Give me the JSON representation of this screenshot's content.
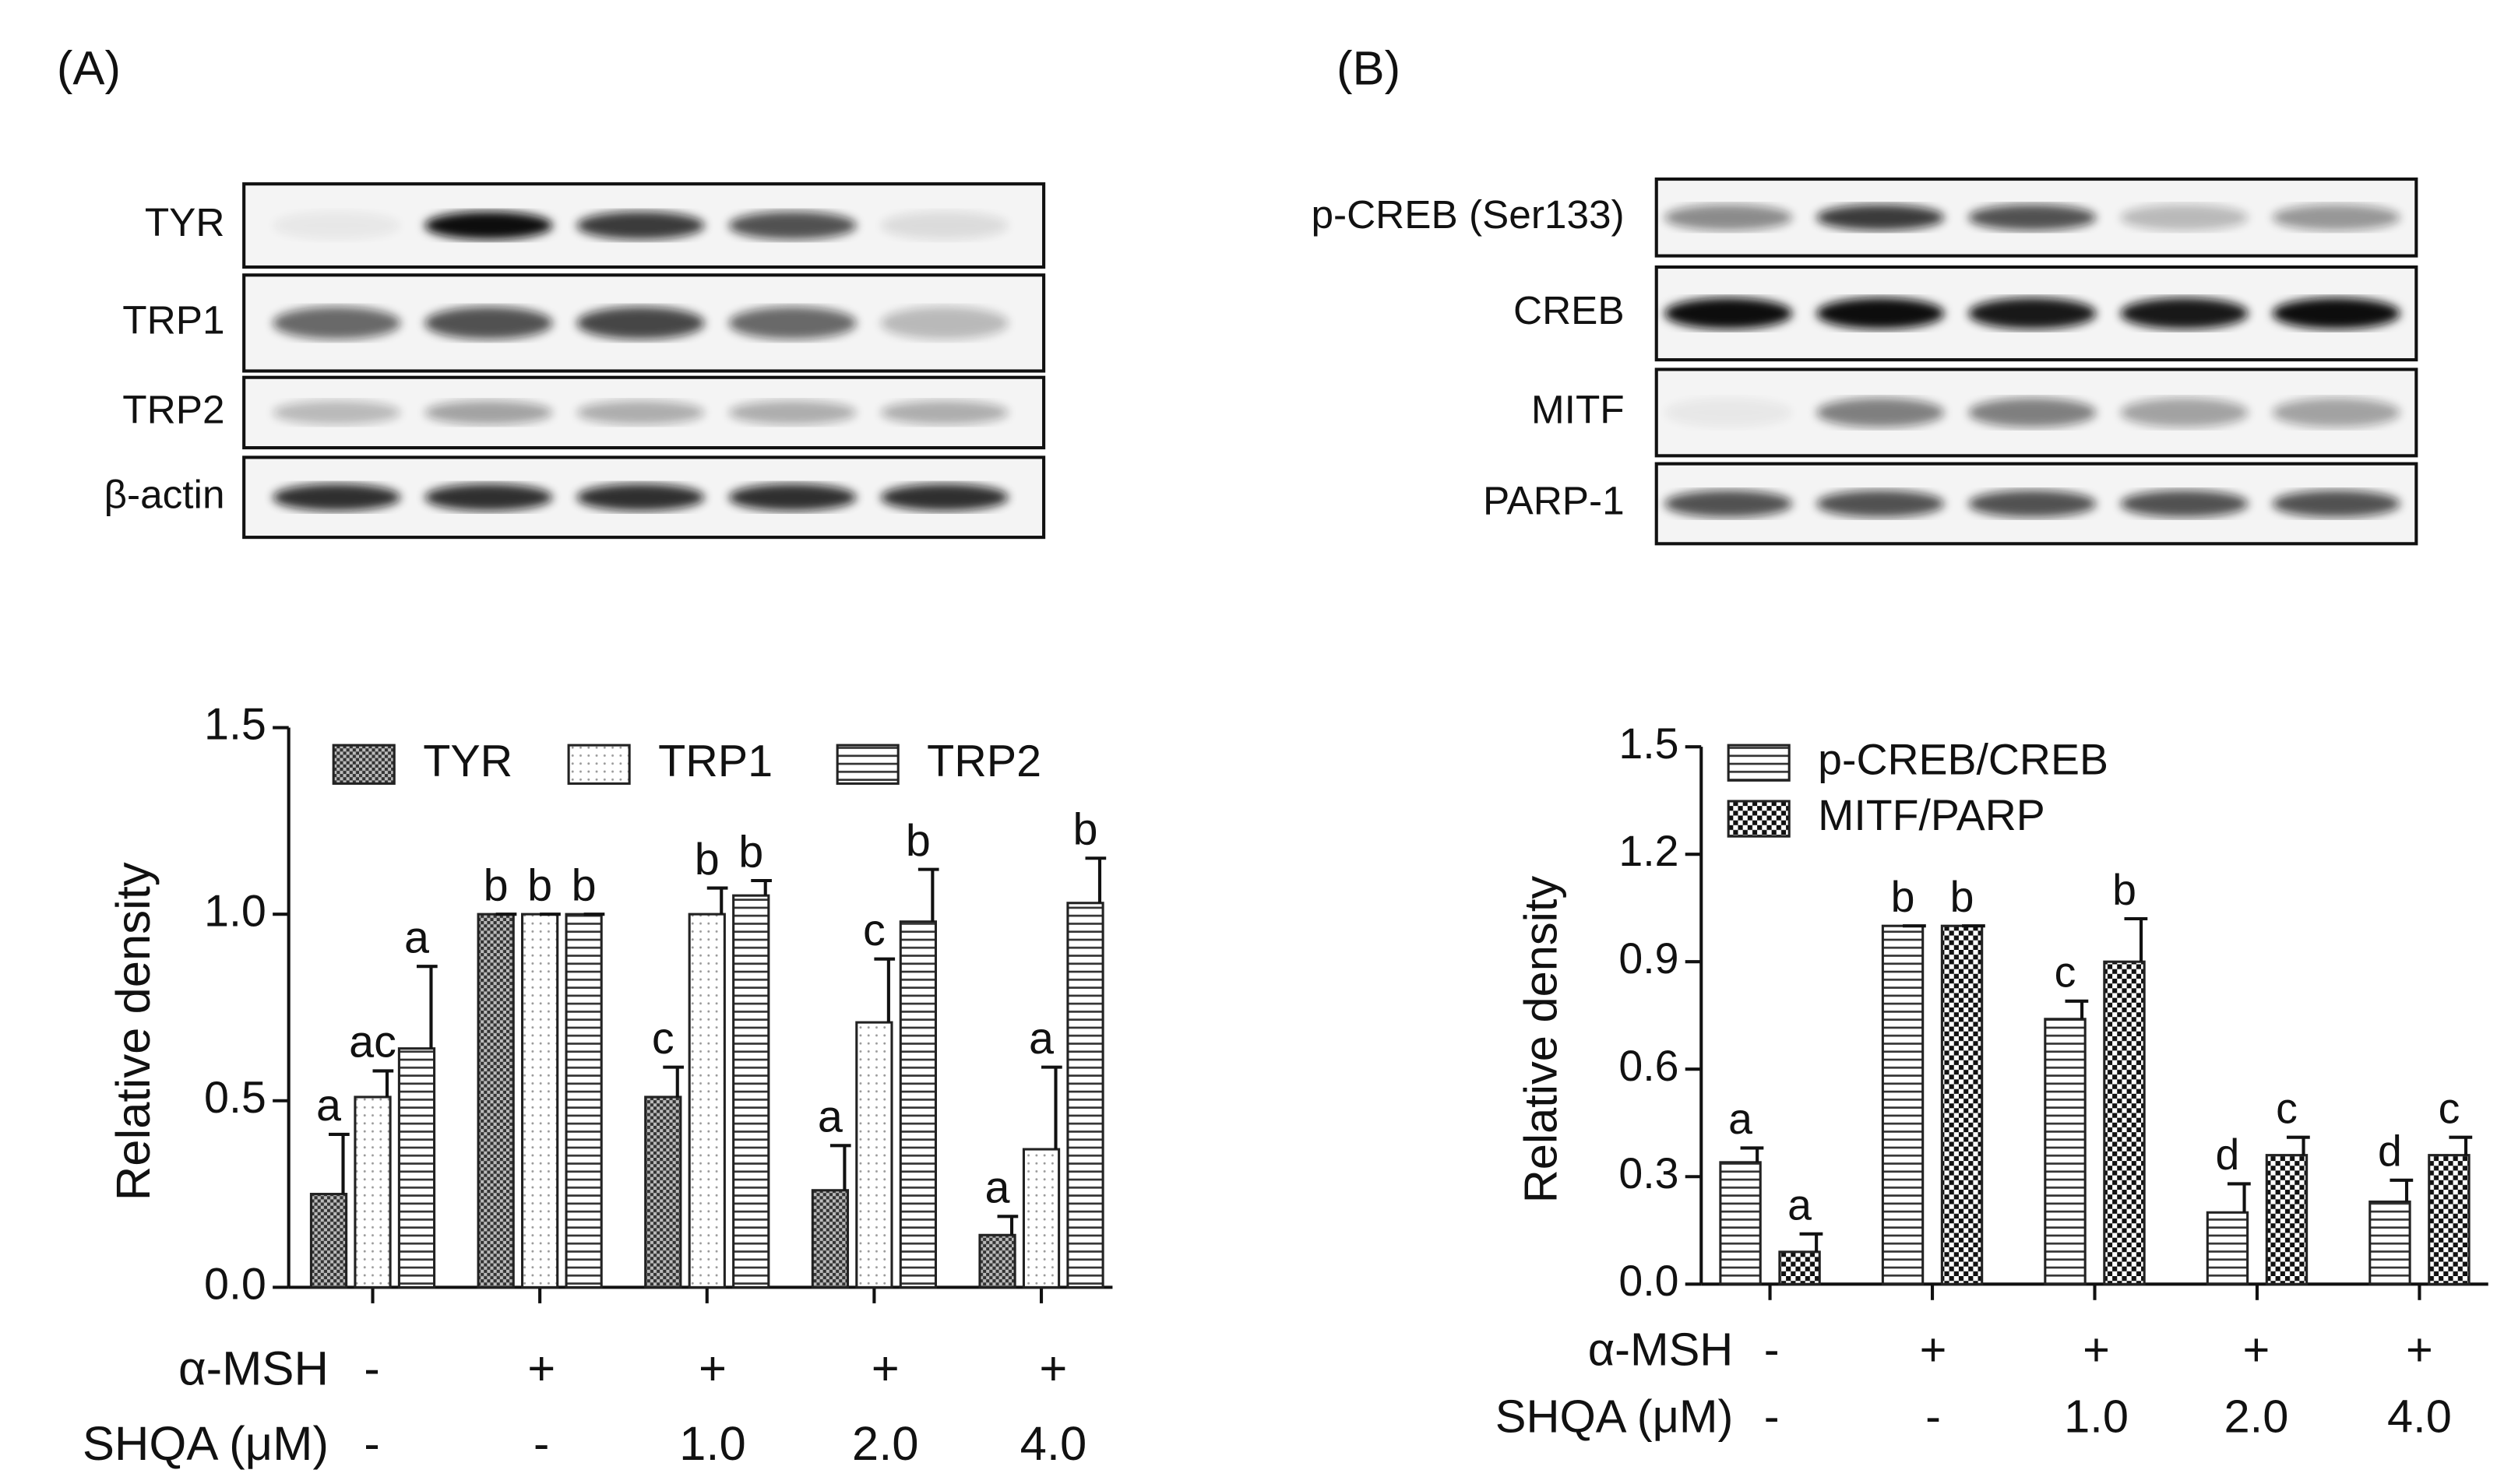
{
  "chart_data": [
    {
      "type": "bar",
      "panel_label": "(A)",
      "blot_labels": [
        "TYR",
        "TRP1",
        "TRP2",
        "β-actin"
      ],
      "ylabel": "Relative density",
      "ylim": [
        0,
        1.5
      ],
      "yticks": [
        {
          "value": 0,
          "label": "0.0"
        },
        {
          "value": 0.5,
          "label": "0.5"
        },
        {
          "value": 1,
          "label": "1.0"
        },
        {
          "value": 1.5,
          "label": "1.5"
        }
      ],
      "series": [
        {
          "name": "TYR",
          "pattern": "crosshatch",
          "color": "#555555",
          "values": [
            0.25,
            1.0,
            0.51,
            0.26,
            0.14
          ],
          "errors": [
            0.16,
            0,
            0.08,
            0.12,
            0.05
          ],
          "letters": [
            "a",
            "b",
            "c",
            "a",
            "a"
          ]
        },
        {
          "name": "TRP1",
          "pattern": "dots",
          "color": "#999999",
          "values": [
            0.51,
            1.0,
            1.0,
            0.71,
            0.37
          ],
          "errors": [
            0.07,
            0,
            0.07,
            0.17,
            0.22
          ],
          "letters": [
            "ac",
            "b",
            "b",
            "c",
            "a"
          ]
        },
        {
          "name": "TRP2",
          "pattern": "hlines",
          "color": "#333333",
          "values": [
            0.64,
            1.0,
            1.05,
            0.98,
            1.03
          ],
          "errors": [
            0.22,
            0,
            0.04,
            0.14,
            0.12
          ],
          "letters": [
            "a",
            "b",
            "b",
            "b",
            "b"
          ]
        }
      ],
      "treatments": [
        {
          "label": "α-MSH",
          "values": [
            "-",
            "+",
            "+",
            "+",
            "+"
          ]
        },
        {
          "label": "SHQA (μM)",
          "values": [
            "-",
            "-",
            "1.0",
            "2.0",
            "4.0"
          ]
        }
      ]
    },
    {
      "type": "bar",
      "panel_label": "(B)",
      "blot_labels": [
        "p-CREB (Ser133)",
        "CREB",
        "MITF",
        "PARP-1"
      ],
      "ylabel": "Relative density",
      "ylim": [
        0,
        1.5
      ],
      "yticks": [
        {
          "value": 0,
          "label": "0.0"
        },
        {
          "value": 0.3,
          "label": "0.3"
        },
        {
          "value": 0.6,
          "label": "0.6"
        },
        {
          "value": 0.9,
          "label": "0.9"
        },
        {
          "value": 1.2,
          "label": "1.2"
        },
        {
          "value": 1.5,
          "label": "1.5"
        }
      ],
      "series": [
        {
          "name": "p-CREB/CREB",
          "pattern": "hlines",
          "color": "#333333",
          "values": [
            0.34,
            1.0,
            0.74,
            0.2,
            0.23
          ],
          "errors": [
            0.04,
            0,
            0.05,
            0.08,
            0.06
          ],
          "letters": [
            "a",
            "b",
            "c",
            "d",
            "d"
          ]
        },
        {
          "name": "MITF/PARP",
          "pattern": "checker",
          "color": "#111111",
          "values": [
            0.09,
            1.0,
            0.9,
            0.36,
            0.36
          ],
          "errors": [
            0.05,
            0,
            0.12,
            0.05,
            0.05
          ],
          "letters": [
            "a",
            "b",
            "b",
            "c",
            "c"
          ]
        }
      ],
      "treatments": [
        {
          "label": "α-MSH",
          "values": [
            "-",
            "+",
            "+",
            "+",
            "+"
          ]
        },
        {
          "label": "SHQA (μM)",
          "values": [
            "-",
            "-",
            "1.0",
            "2.0",
            "4.0"
          ]
        }
      ]
    }
  ]
}
